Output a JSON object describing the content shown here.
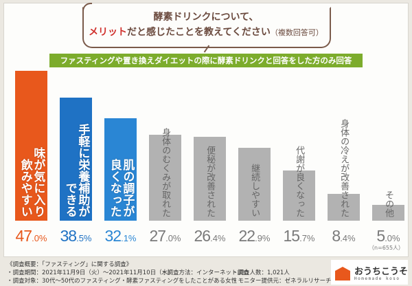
{
  "question": {
    "line1": "酵素ドリンクについて、",
    "line2_highlight": "メリット",
    "line2_rest": "だと感じたことを教えてください",
    "line2_note": "（複数回答可）"
  },
  "filter_note": "ファスティングや置き換えダイエットの際に酵素ドリンクと回答をした方のみ回答",
  "chart_data": {
    "type": "bar",
    "categories": [
      "味が気に入り\n飲みやすい",
      "手軽に栄養補助が\nできる",
      "肌の調子が\n良くなった",
      "身体のむくみが取れた",
      "便秘が改善された",
      "継続しやすい",
      "代謝が良くなった",
      "身体の冷えが改善された",
      "その他"
    ],
    "values": [
      47.0,
      38.5,
      32.1,
      27.0,
      26.4,
      22.9,
      15.7,
      8.4,
      5.0
    ],
    "unit": "%",
    "colors": [
      "#e8581c",
      "#1f72c4",
      "#2a86d4",
      "#b2b2b2",
      "#b2b2b2",
      "#b2b2b2",
      "#b2b2b2",
      "#b2b2b2",
      "#b2b2b2"
    ],
    "pct_colors": [
      "#e8581c",
      "#1f72c4",
      "#2a86d4",
      "#7a7a7a",
      "#7a7a7a",
      "#7a7a7a",
      "#7a7a7a",
      "#7a7a7a",
      "#7a7a7a"
    ],
    "ylim": [
      0,
      50
    ],
    "grid": false,
    "sample_note": "（n=655人）"
  },
  "footer": {
    "title": "《調査概要：「ファスティング」に関する調査》",
    "period": "・調査期間：2021年11月9日（火）〜2021年11月10日（水）",
    "method": "・調査方法：インターネット調査",
    "count": "・調査人数：1,021人",
    "target": "・調査対象：30代〜50代のファスティング・酵素ファスティングをしたことがある女性",
    "provider": "・モニター提供元：ゼネラルリサーチ"
  },
  "logo": {
    "jp": "おうちこうそ",
    "en": "Homemade koso"
  }
}
